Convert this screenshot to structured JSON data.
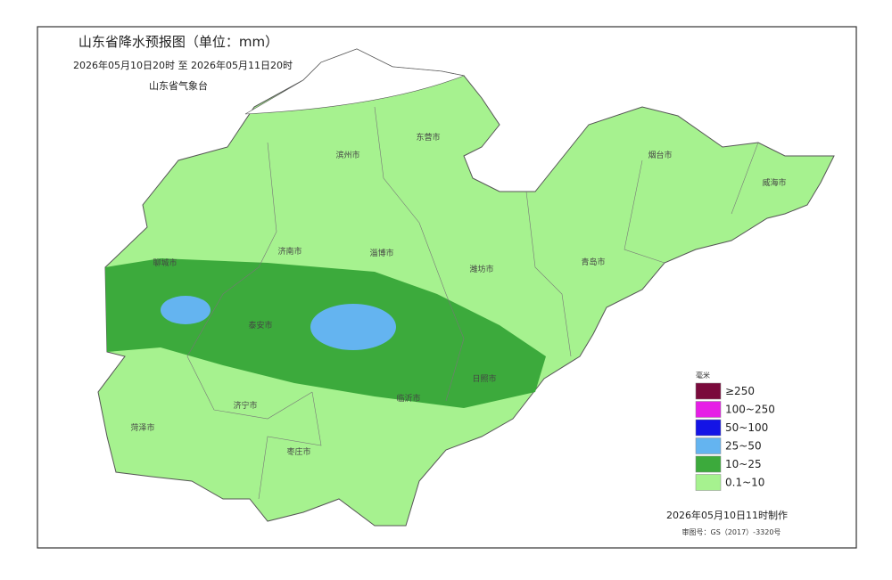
{
  "header": {
    "title": "山东省降水预报图（单位：mm）",
    "period": "2026年05月10日20时  至  2026年05月11日20时",
    "issuer": "山东省气象台"
  },
  "cities": [
    "滨州市",
    "东营市",
    "烟台市",
    "威海市",
    "聊城市",
    "济南市",
    "淄博市",
    "潍坊市",
    "青岛市",
    "泰安市",
    "日照市",
    "临沂市",
    "济宁市",
    "菏泽市",
    "枣庄市"
  ],
  "legend": {
    "title": "毫米",
    "items": [
      {
        "label": "≥250",
        "color": "#7a0a3c"
      },
      {
        "label": "100~250",
        "color": "#e61ee6"
      },
      {
        "label": "50~100",
        "color": "#1414e6"
      },
      {
        "label": "25~50",
        "color": "#64b4f0"
      },
      {
        "label": "10~25",
        "color": "#3caa3c"
      },
      {
        "label": "0.1~10",
        "color": "#a6f28f"
      }
    ]
  },
  "footer": {
    "made": "2026年05月10日11时制作",
    "approval": "审图号：GS（2017）-3320号"
  }
}
